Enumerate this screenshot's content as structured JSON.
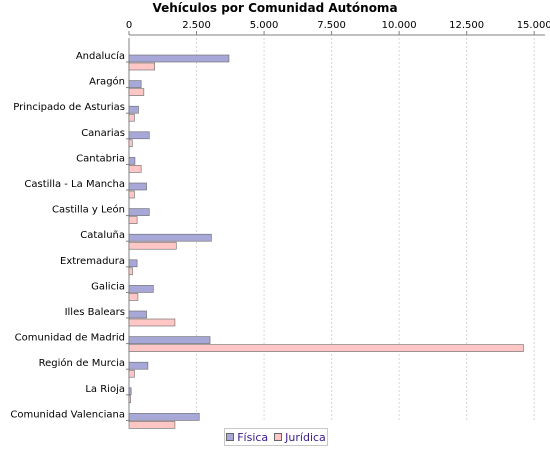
{
  "chart_data": {
    "type": "bar",
    "orientation": "horizontal",
    "title": "Vehículos por Comunidad Autónoma",
    "categories": [
      "Andalucía",
      "Aragón",
      "Principado de Asturias",
      "Canarias",
      "Cantabria",
      "Castilla - La Mancha",
      "Castilla y León",
      "Cataluña",
      "Extremadura",
      "Galicia",
      "Illes Balears",
      "Comunidad de Madrid",
      "Región de Murcia",
      "La Rioja",
      "Comunidad Valenciana"
    ],
    "series": [
      {
        "name": "Física",
        "color": "#a8a8d8",
        "values": [
          3700,
          450,
          350,
          750,
          220,
          650,
          750,
          3050,
          300,
          900,
          650,
          3000,
          700,
          80,
          2600
        ]
      },
      {
        "name": "Jurídica",
        "color": "#ffc6c6",
        "values": [
          950,
          550,
          200,
          120,
          450,
          200,
          300,
          1750,
          130,
          330,
          1700,
          14600,
          200,
          60,
          1700
        ]
      }
    ],
    "xticks": [
      "0",
      "2.500",
      "5.000",
      "7.500",
      "10.000",
      "12.500",
      "15.000"
    ],
    "xtick_values": [
      0,
      2500,
      5000,
      7500,
      10000,
      12500,
      15000
    ],
    "xlim": [
      0,
      15400
    ],
    "xlabel": "",
    "ylabel": "",
    "grid": true,
    "legend_position": "bottom"
  }
}
